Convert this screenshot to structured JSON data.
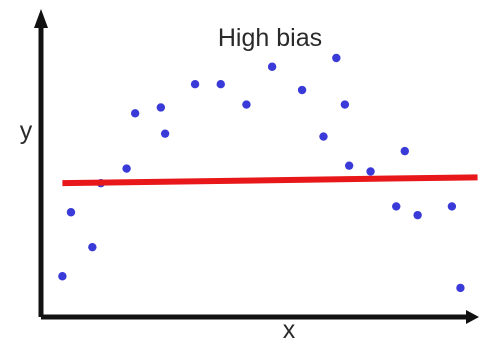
{
  "chart_data": {
    "type": "scatter",
    "title": "High bias",
    "xlabel": "x",
    "ylabel": "y",
    "xlim": [
      0,
      10
    ],
    "ylim": [
      0,
      10
    ],
    "grid": false,
    "legend": "none",
    "ticks": "none",
    "colors": {
      "points": "#3a3ad8",
      "fit_line": "#e8181a",
      "axes": "#111111"
    },
    "points": [
      {
        "x": 0.5,
        "y": 1.4
      },
      {
        "x": 0.7,
        "y": 3.6
      },
      {
        "x": 1.2,
        "y": 2.4
      },
      {
        "x": 1.4,
        "y": 4.6
      },
      {
        "x": 2.0,
        "y": 5.1
      },
      {
        "x": 2.2,
        "y": 7.0
      },
      {
        "x": 2.8,
        "y": 7.2
      },
      {
        "x": 2.9,
        "y": 6.3
      },
      {
        "x": 3.6,
        "y": 8.0
      },
      {
        "x": 4.2,
        "y": 8.0
      },
      {
        "x": 4.8,
        "y": 7.3
      },
      {
        "x": 5.4,
        "y": 8.6
      },
      {
        "x": 6.1,
        "y": 7.8
      },
      {
        "x": 6.6,
        "y": 6.2
      },
      {
        "x": 6.9,
        "y": 8.9
      },
      {
        "x": 7.1,
        "y": 7.3
      },
      {
        "x": 7.2,
        "y": 5.2
      },
      {
        "x": 7.7,
        "y": 5.0
      },
      {
        "x": 8.3,
        "y": 3.8
      },
      {
        "x": 8.5,
        "y": 5.7
      },
      {
        "x": 8.8,
        "y": 3.5
      },
      {
        "x": 9.6,
        "y": 3.8
      },
      {
        "x": 9.8,
        "y": 1.0
      }
    ],
    "fit_line": {
      "type": "linear",
      "x": [
        0.5,
        10.2
      ],
      "y": [
        4.6,
        4.8
      ]
    }
  }
}
